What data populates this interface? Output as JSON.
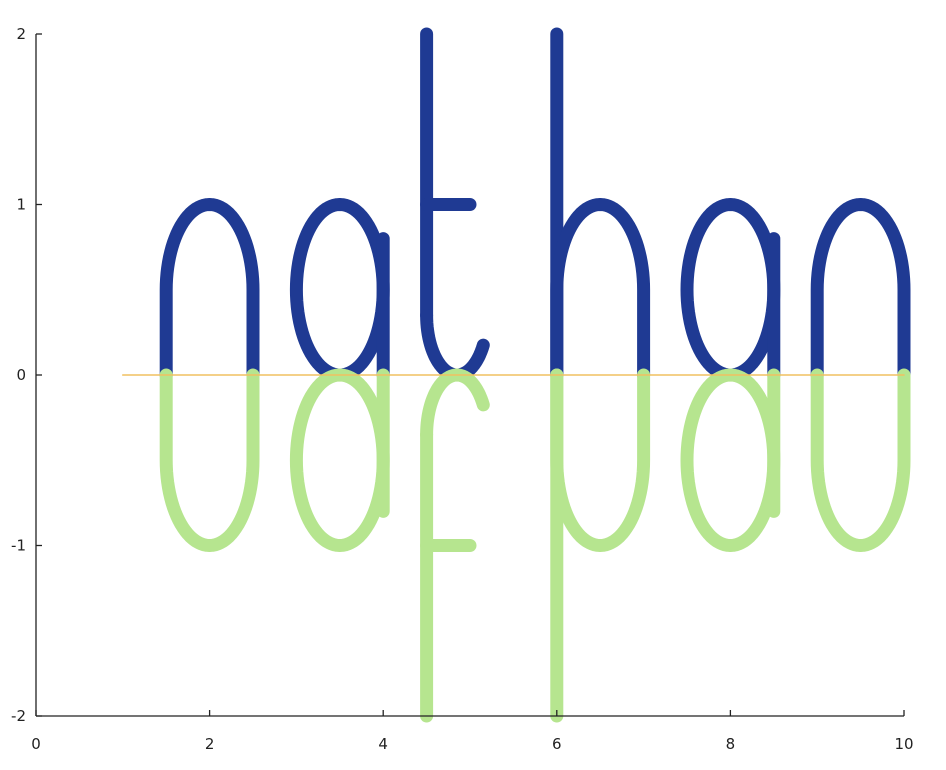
{
  "chart_data": {
    "type": "line",
    "title": "",
    "xlabel": "",
    "ylabel": "",
    "xlim": [
      0,
      10
    ],
    "ylim": [
      -2,
      2
    ],
    "grid": false,
    "legend": "none",
    "x_ticks": [
      {
        "value": 0,
        "label": "0"
      },
      {
        "value": 2,
        "label": "2"
      },
      {
        "value": 4,
        "label": "4"
      },
      {
        "value": 6,
        "label": "6"
      },
      {
        "value": 8,
        "label": "8"
      },
      {
        "value": 10,
        "label": "10"
      }
    ],
    "y_ticks": [
      {
        "value": -2,
        "label": "-2"
      },
      {
        "value": -1,
        "label": "-1"
      },
      {
        "value": 0,
        "label": "0"
      },
      {
        "value": 1,
        "label": "1"
      },
      {
        "value": 2,
        "label": "2"
      }
    ],
    "series": [
      {
        "color": "#1f3a93",
        "line_weight": "thick",
        "strokes": [
          {
            "kind": "arch",
            "x0": 1.5,
            "x1": 2.5,
            "y_base": 0,
            "y_top": 1
          },
          {
            "kind": "loop",
            "cx": 3.5,
            "rx": 0.5,
            "cy": 0.5,
            "ry": 0.5
          },
          {
            "kind": "segment",
            "points": [
              [
                4.0,
                0.0
              ],
              [
                4.0,
                0.8
              ]
            ]
          },
          {
            "kind": "segment",
            "points": [
              [
                4.5,
                2.0
              ],
              [
                4.5,
                0.35
              ]
            ]
          },
          {
            "kind": "arc",
            "cx": 4.85,
            "cy": 0.35,
            "r": 0.35,
            "from_deg": 180,
            "to_deg": 330
          },
          {
            "kind": "segment",
            "points": [
              [
                4.5,
                1.0
              ],
              [
                5.0,
                1.0
              ]
            ]
          },
          {
            "kind": "segment",
            "points": [
              [
                6.0,
                2.0
              ],
              [
                6.0,
                0.0
              ]
            ]
          },
          {
            "kind": "arch",
            "x0": 6.0,
            "x1": 7.0,
            "y_base": 0,
            "y_top": 1
          },
          {
            "kind": "loop",
            "cx": 8.0,
            "rx": 0.5,
            "cy": 0.5,
            "ry": 0.5
          },
          {
            "kind": "segment",
            "points": [
              [
                8.5,
                0.0
              ],
              [
                8.5,
                0.8
              ]
            ]
          },
          {
            "kind": "arch",
            "x0": 9.0,
            "x1": 10.0,
            "y_base": 0,
            "y_top": 1
          }
        ]
      },
      {
        "color": "#b6e58f",
        "line_weight": "thick",
        "strokes": [
          {
            "kind": "arch",
            "x0": 1.5,
            "x1": 2.5,
            "y_base": 0,
            "y_top": -1
          },
          {
            "kind": "loop",
            "cx": 3.5,
            "rx": 0.5,
            "cy": -0.5,
            "ry": 0.5
          },
          {
            "kind": "segment",
            "points": [
              [
                4.0,
                0.0
              ],
              [
                4.0,
                -0.8
              ]
            ]
          },
          {
            "kind": "segment",
            "points": [
              [
                4.5,
                -2.0
              ],
              [
                4.5,
                -0.35
              ]
            ]
          },
          {
            "kind": "arc",
            "cx": 4.85,
            "cy": -0.35,
            "r": 0.35,
            "from_deg": 180,
            "to_deg": 30
          },
          {
            "kind": "segment",
            "points": [
              [
                4.5,
                -1.0
              ],
              [
                5.0,
                -1.0
              ]
            ]
          },
          {
            "kind": "segment",
            "points": [
              [
                6.0,
                -2.0
              ],
              [
                6.0,
                0.0
              ]
            ]
          },
          {
            "kind": "arch",
            "x0": 6.0,
            "x1": 7.0,
            "y_base": 0,
            "y_top": -1
          },
          {
            "kind": "loop",
            "cx": 8.0,
            "rx": 0.5,
            "cy": -0.5,
            "ry": 0.5
          },
          {
            "kind": "segment",
            "points": [
              [
                8.5,
                0.0
              ],
              [
                8.5,
                -0.8
              ]
            ]
          },
          {
            "kind": "arch",
            "x0": 9.0,
            "x1": 10.0,
            "y_base": 0,
            "y_top": -1
          }
        ]
      },
      {
        "color": "#f0c060",
        "line_weight": "thin",
        "strokes": [
          {
            "kind": "segment",
            "points": [
              [
                1.0,
                0.0
              ],
              [
                10.0,
                0.0
              ]
            ]
          }
        ]
      }
    ]
  }
}
